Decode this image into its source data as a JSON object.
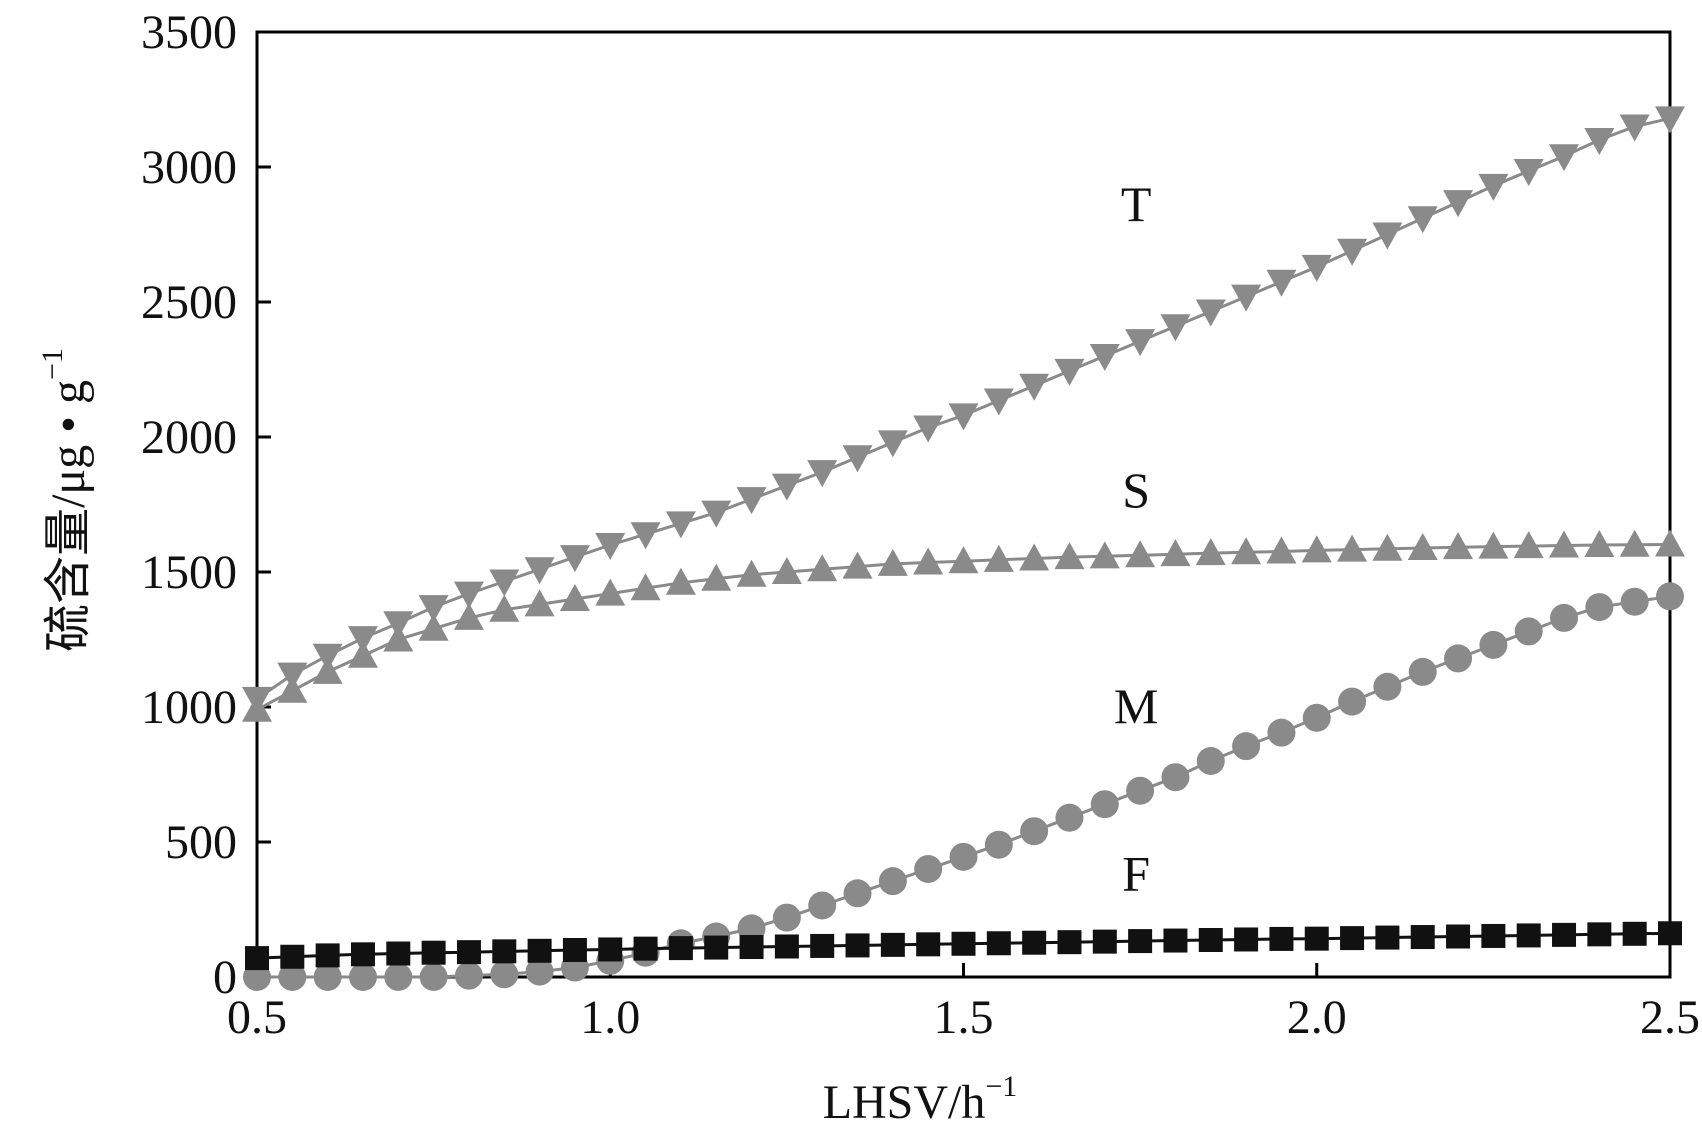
{
  "chart_data": {
    "type": "line",
    "title": "",
    "xlabel": "LHSV/h",
    "xlabel_sup": "−1",
    "ylabel": "硫含量/μg • g",
    "ylabel_sup": "−1",
    "xlim": [
      0.5,
      2.5
    ],
    "ylim": [
      0,
      3500
    ],
    "x_ticks": [
      0.5,
      1.0,
      1.5,
      2.0,
      2.5
    ],
    "x_tick_labels": [
      "0.5",
      "1.0",
      "1.5",
      "2.0",
      "2.5"
    ],
    "y_ticks": [
      0,
      500,
      1000,
      1500,
      2000,
      2500,
      3000,
      3500
    ],
    "y_tick_labels": [
      "0",
      "500",
      "1000",
      "1500",
      "2000",
      "2500",
      "3000",
      "3500"
    ],
    "grid": false,
    "legend": "none",
    "x": [
      0.5,
      0.55,
      0.6,
      0.65,
      0.7,
      0.75,
      0.8,
      0.85,
      0.9,
      0.95,
      1.0,
      1.05,
      1.1,
      1.15,
      1.2,
      1.25,
      1.3,
      1.35,
      1.4,
      1.45,
      1.5,
      1.55,
      1.6,
      1.65,
      1.7,
      1.75,
      1.8,
      1.85,
      1.9,
      1.95,
      2.0,
      2.05,
      2.1,
      2.15,
      2.2,
      2.25,
      2.3,
      2.35,
      2.4,
      2.45,
      2.5
    ],
    "series": [
      {
        "name": "T",
        "marker": "triangle-down",
        "color": "#8a8a8a",
        "label_at": [
          1.9,
          2800
        ],
        "values": [
          1030,
          1120,
          1190,
          1255,
          1310,
          1370,
          1420,
          1465,
          1510,
          1555,
          1600,
          1640,
          1680,
          1720,
          1770,
          1820,
          1870,
          1925,
          1980,
          2035,
          2080,
          2135,
          2190,
          2245,
          2300,
          2355,
          2410,
          2465,
          2520,
          2575,
          2630,
          2690,
          2750,
          2810,
          2870,
          2930,
          2985,
          3040,
          3100,
          3150,
          3180
        ]
      },
      {
        "name": "S",
        "marker": "triangle-up",
        "color": "#8a8a8a",
        "label_at": [
          1.9,
          1740
        ],
        "values": [
          990,
          1060,
          1130,
          1190,
          1250,
          1290,
          1330,
          1360,
          1380,
          1400,
          1420,
          1440,
          1460,
          1475,
          1490,
          1500,
          1510,
          1520,
          1530,
          1535,
          1540,
          1545,
          1550,
          1555,
          1558,
          1562,
          1566,
          1570,
          1573,
          1576,
          1580,
          1583,
          1586,
          1589,
          1592,
          1594,
          1596,
          1598,
          1600,
          1601,
          1602
        ]
      },
      {
        "name": "M",
        "marker": "circle",
        "color": "#8a8a8a",
        "label_at": [
          1.9,
          940
        ],
        "values": [
          0,
          0,
          0,
          0,
          0,
          0,
          5,
          10,
          20,
          35,
          60,
          90,
          125,
          150,
          180,
          220,
          265,
          310,
          355,
          400,
          445,
          490,
          540,
          590,
          640,
          690,
          740,
          800,
          855,
          905,
          960,
          1020,
          1075,
          1130,
          1180,
          1230,
          1280,
          1330,
          1370,
          1390,
          1410
        ]
      },
      {
        "name": "F",
        "marker": "square",
        "color": "#111111",
        "label_at": [
          1.9,
          320
        ],
        "values": [
          70,
          75,
          80,
          84,
          87,
          90,
          92,
          95,
          97,
          100,
          102,
          105,
          107,
          109,
          111,
          113,
          115,
          117,
          119,
          121,
          123,
          125,
          127,
          129,
          131,
          133,
          135,
          137,
          139,
          141,
          142,
          144,
          146,
          148,
          150,
          152,
          154,
          156,
          158,
          160,
          162
        ]
      }
    ]
  }
}
